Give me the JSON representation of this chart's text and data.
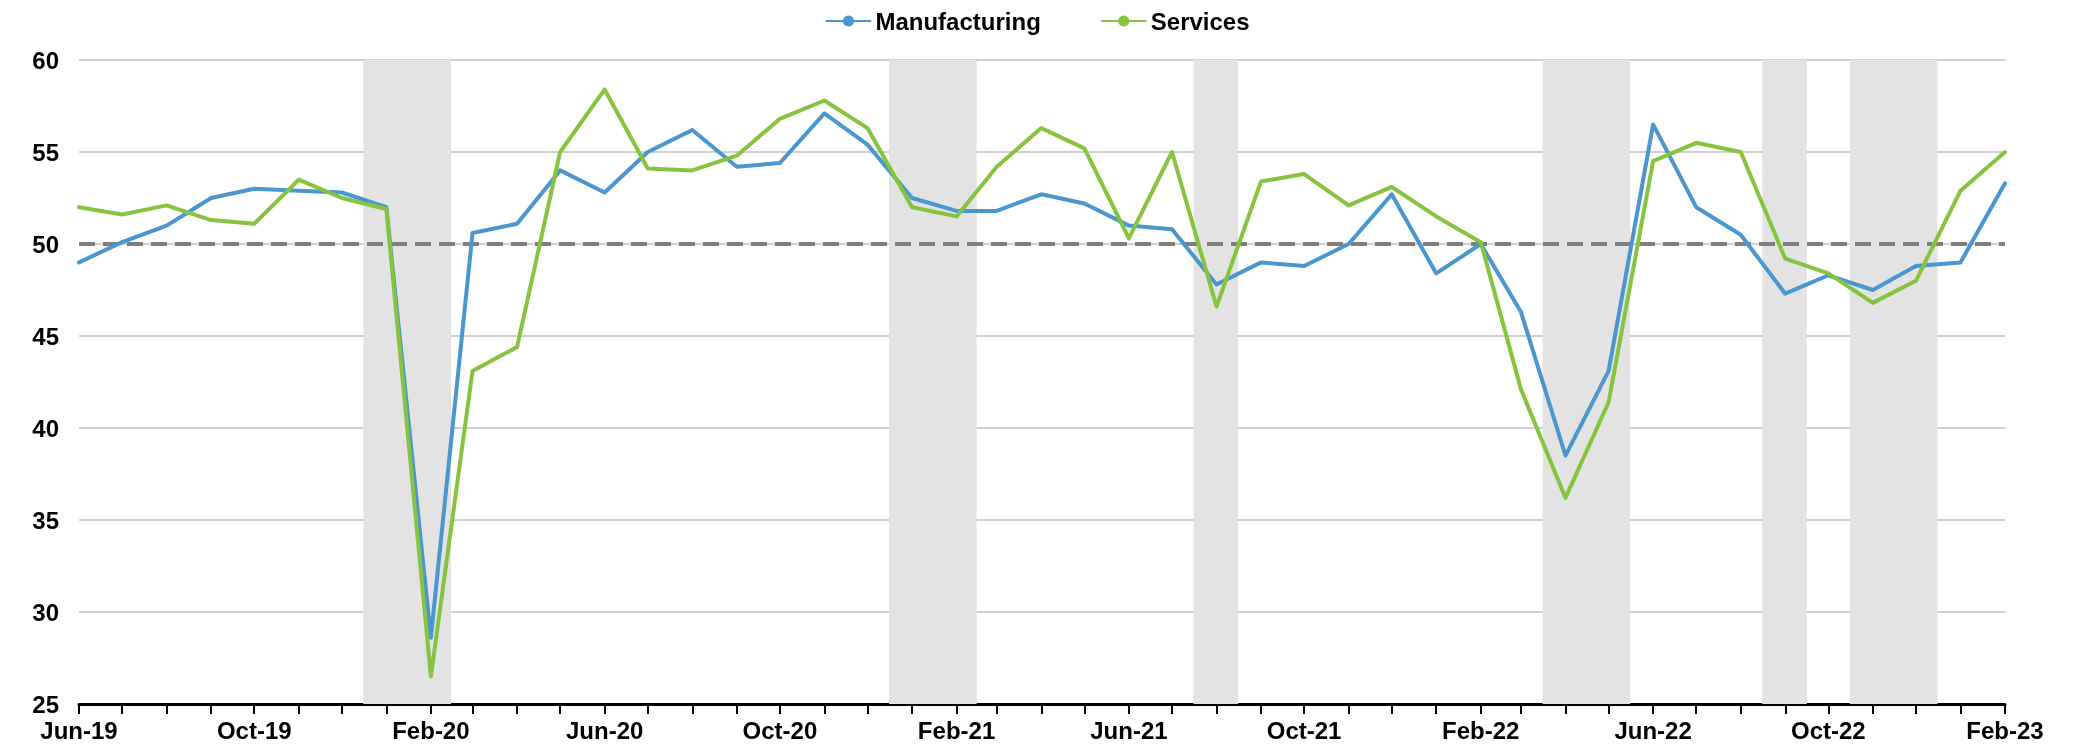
{
  "chart_data": {
    "type": "line",
    "legend": "top",
    "grid": "y",
    "marker": "none",
    "line_style": "solid",
    "x": [
      "2019-06",
      "2019-07",
      "2019-08",
      "2019-09",
      "2019-10",
      "2019-11",
      "2019-12",
      "2020-01",
      "2020-02",
      "2020-03",
      "2020-04",
      "2020-05",
      "2020-06",
      "2020-07",
      "2020-08",
      "2020-09",
      "2020-10",
      "2020-11",
      "2020-12",
      "2021-01",
      "2021-02",
      "2021-03",
      "2021-04",
      "2021-05",
      "2021-06",
      "2021-07",
      "2021-08",
      "2021-09",
      "2021-10",
      "2021-11",
      "2021-12",
      "2022-01",
      "2022-02",
      "2022-03",
      "2022-04",
      "2022-05",
      "2022-06",
      "2022-07",
      "2022-08",
      "2022-09",
      "2022-10",
      "2022-11",
      "2022-12",
      "2023-01",
      "2023-02"
    ],
    "xlim": [
      "2019-06",
      "2023-02"
    ],
    "xticks": [
      {
        "value": "2019-06",
        "label": "Jun-19"
      },
      {
        "value": "2019-07",
        "label": null
      },
      {
        "value": "2019-08",
        "label": null
      },
      {
        "value": "2019-09",
        "label": null
      },
      {
        "value": "2019-10",
        "label": "Oct-19"
      },
      {
        "value": "2019-11",
        "label": null
      },
      {
        "value": "2019-12",
        "label": null
      },
      {
        "value": "2020-01",
        "label": null
      },
      {
        "value": "2020-02",
        "label": "Feb-20"
      },
      {
        "value": "2020-03",
        "label": null
      },
      {
        "value": "2020-04",
        "label": null
      },
      {
        "value": "2020-05",
        "label": null
      },
      {
        "value": "2020-06",
        "label": "Jun-20"
      },
      {
        "value": "2020-07",
        "label": null
      },
      {
        "value": "2020-08",
        "label": null
      },
      {
        "value": "2020-09",
        "label": null
      },
      {
        "value": "2020-10",
        "label": "Oct-20"
      },
      {
        "value": "2020-11",
        "label": null
      },
      {
        "value": "2020-12",
        "label": null
      },
      {
        "value": "2021-01",
        "label": null
      },
      {
        "value": "2021-02",
        "label": "Feb-21"
      },
      {
        "value": "2021-03",
        "label": null
      },
      {
        "value": "2021-04",
        "label": null
      },
      {
        "value": "2021-05",
        "label": null
      },
      {
        "value": "2021-06",
        "label": "Jun-21"
      },
      {
        "value": "2021-07",
        "label": null
      },
      {
        "value": "2021-08",
        "label": null
      },
      {
        "value": "2021-09",
        "label": null
      },
      {
        "value": "2021-10",
        "label": "Oct-21"
      },
      {
        "value": "2021-11",
        "label": null
      },
      {
        "value": "2021-12",
        "label": null
      },
      {
        "value": "2022-01",
        "label": null
      },
      {
        "value": "2022-02",
        "label": "Feb-22"
      },
      {
        "value": "2022-03",
        "label": null
      },
      {
        "value": "2022-04",
        "label": null
      },
      {
        "value": "2022-05",
        "label": null
      },
      {
        "value": "2022-06",
        "label": "Jun-22"
      },
      {
        "value": "2022-07",
        "label": null
      },
      {
        "value": "2022-08",
        "label": null
      },
      {
        "value": "2022-09",
        "label": null
      },
      {
        "value": "2022-10",
        "label": "Oct-22"
      },
      {
        "value": "2022-11",
        "label": null
      },
      {
        "value": "2022-12",
        "label": null
      },
      {
        "value": "2023-01",
        "label": null
      },
      {
        "value": "2023-02",
        "label": "Feb-23"
      }
    ],
    "ylim": [
      25,
      60
    ],
    "yticks": [
      25,
      30,
      35,
      40,
      45,
      50,
      55,
      60
    ],
    "series": [
      {
        "name": "Manufacturing",
        "color": "#4a96cf",
        "values": [
          49.0,
          50.1,
          51.0,
          52.5,
          53.0,
          52.9,
          52.8,
          52.0,
          28.6,
          50.6,
          51.1,
          54.0,
          52.8,
          55.0,
          56.2,
          54.2,
          54.4,
          57.1,
          55.4,
          52.5,
          51.8,
          51.8,
          52.7,
          52.2,
          51.0,
          50.8,
          47.8,
          49.0,
          48.8,
          50.0,
          52.7,
          48.4,
          50.0,
          46.3,
          38.5,
          43.1,
          56.5,
          52.0,
          50.5,
          47.3,
          48.3,
          47.5,
          48.8,
          49.0,
          53.3
        ]
      },
      {
        "name": "Services",
        "color": "#86c440",
        "values": [
          52.0,
          51.6,
          52.1,
          51.3,
          51.1,
          53.5,
          52.5,
          51.9,
          26.5,
          43.1,
          44.4,
          55.0,
          58.4,
          54.1,
          54.0,
          54.8,
          56.8,
          57.8,
          56.3,
          52.0,
          51.5,
          54.2,
          56.3,
          55.2,
          50.3,
          55.0,
          46.6,
          53.4,
          53.8,
          52.1,
          53.1,
          51.5,
          50.1,
          42.1,
          36.2,
          41.4,
          54.5,
          55.5,
          55.0,
          49.2,
          48.4,
          46.8,
          48.0,
          52.9,
          55.0
        ]
      }
    ],
    "ref_lines": [
      {
        "axis": "y",
        "value": 50,
        "color": "#7f7f7f",
        "line_style": "dashed"
      }
    ],
    "bands": [
      {
        "axis": "x",
        "from": "2019-12-16",
        "to": "2020-02-15",
        "color": "#e3e3e3"
      },
      {
        "axis": "x",
        "from": "2020-12-16",
        "to": "2021-02-15",
        "color": "#e3e3e3"
      },
      {
        "axis": "x",
        "from": "2021-07-16",
        "to": "2021-08-16",
        "color": "#e3e3e3"
      },
      {
        "axis": "x",
        "from": "2022-03-16",
        "to": "2022-05-16",
        "color": "#e3e3e3"
      },
      {
        "axis": "x",
        "from": "2022-08-16",
        "to": "2022-09-16",
        "color": "#e3e3e3"
      },
      {
        "axis": "x",
        "from": "2022-10-16",
        "to": "2022-12-16",
        "color": "#e3e3e3"
      }
    ]
  }
}
